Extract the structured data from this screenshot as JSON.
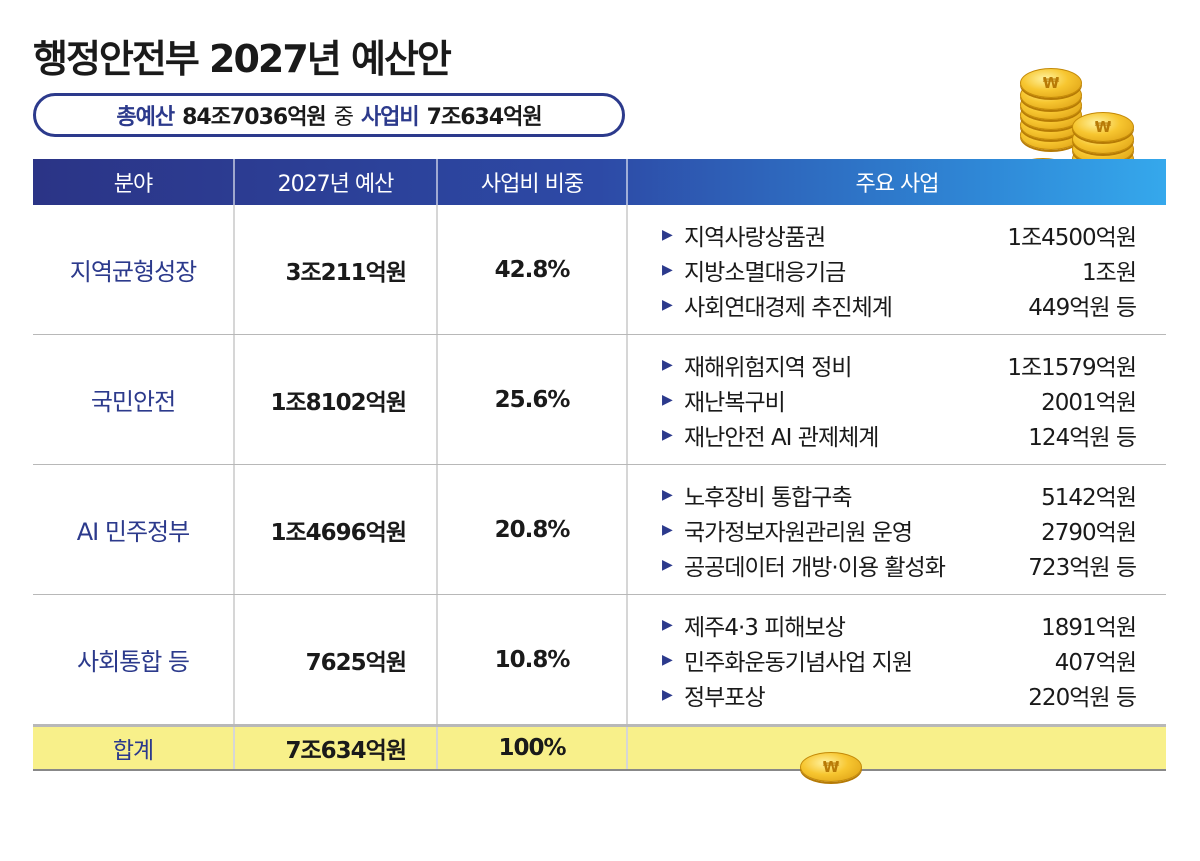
{
  "title": "행정안전부 2027년 예산안",
  "summary": {
    "label1": "총예산",
    "value1": "84조7036억원",
    "mid": "중",
    "label2": "사업비",
    "value2": "7조634억원"
  },
  "table": {
    "headers": [
      "분야",
      "2027년 예산",
      "사업비 비중",
      "주요 사업"
    ],
    "rows": [
      {
        "field": "지역균형성장",
        "budget": "3조211억원",
        "ratio": "42.8%",
        "items": [
          {
            "name": "지역사랑상품권",
            "amount": "1조4500억원"
          },
          {
            "name": "지방소멸대응기금",
            "amount": "1조원"
          },
          {
            "name": "사회연대경제 추진체계",
            "amount": "449억원 등"
          }
        ]
      },
      {
        "field": "국민안전",
        "budget": "1조8102억원",
        "ratio": "25.6%",
        "items": [
          {
            "name": "재해위험지역 정비",
            "amount": "1조1579억원"
          },
          {
            "name": "재난복구비",
            "amount": "2001억원"
          },
          {
            "name": "재난안전 AI 관제체계",
            "amount": "124억원 등"
          }
        ]
      },
      {
        "field": "AI 민주정부",
        "budget": "1조4696억원",
        "ratio": "20.8%",
        "items": [
          {
            "name": "노후장비 통합구축",
            "amount": "5142억원"
          },
          {
            "name": "국가정보자원관리원 운영",
            "amount": "2790억원"
          },
          {
            "name": "공공데이터 개방·이용 활성화",
            "amount": "723억원 등"
          }
        ]
      },
      {
        "field": "사회통합 등",
        "budget": "7625억원",
        "ratio": "10.8%",
        "items": [
          {
            "name": "제주4·3 피해보상",
            "amount": "1891억원"
          },
          {
            "name": "민주화운동기념사업 지원",
            "amount": "407억원"
          },
          {
            "name": "정부포상",
            "amount": "220억원 등"
          }
        ]
      }
    ],
    "total": {
      "field": "합계",
      "budget": "7조634억원",
      "ratio": "100%"
    }
  },
  "icons": {
    "bullet": "triangle-right-icon",
    "coin": "won-coin-icon"
  },
  "colors": {
    "accent": "#2c3a8c",
    "header_start": "#2b3486",
    "header_end": "#35a8ec",
    "total_bg": "#f8f08a"
  }
}
